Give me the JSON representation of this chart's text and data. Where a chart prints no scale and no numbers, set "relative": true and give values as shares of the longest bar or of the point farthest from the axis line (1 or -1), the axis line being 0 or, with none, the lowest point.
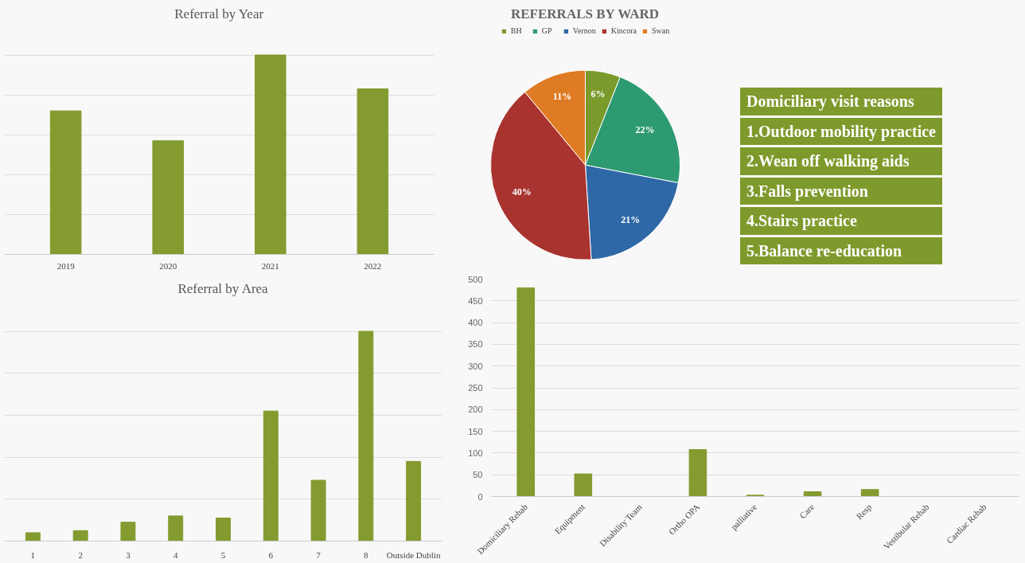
{
  "chart_data": [
    {
      "type": "bar",
      "title": "Referral by Year",
      "categories": [
        "2019",
        "2020",
        "2021",
        "2022"
      ],
      "values": [
        0.72,
        0.57,
        1,
        0.83
      ],
      "relative": true,
      "color": "#849b2f",
      "grid": "y",
      "tick_labels": "x"
    },
    {
      "type": "pie",
      "title": "REFERRALS BY WARD",
      "categories": [
        "BH",
        "GP",
        "Vernon",
        "Kincora",
        "Swan"
      ],
      "values": [
        6,
        22,
        21,
        40,
        11
      ],
      "value_labels": [
        "6%",
        "22%",
        "21%",
        "40%",
        "11%"
      ],
      "colors": [
        "#7b9a2c",
        "#2e9a72",
        "#2f68a6",
        "#a8332f",
        "#e07b25"
      ],
      "legend": "top"
    },
    {
      "type": "other",
      "title": "Domiciliary visit reasons",
      "annotations": [
        "1.Outdoor mobility practice",
        "2.Wean off walking aids",
        "3.Falls prevention",
        "4.Stairs practice",
        "5.Balance re-education"
      ]
    },
    {
      "type": "bar",
      "title": "Referral by Area",
      "categories": [
        "1",
        "2",
        "3",
        "4",
        "5",
        "6",
        "7",
        "8",
        "Outside Dublin"
      ],
      "values": [
        0.04,
        0.05,
        0.09,
        0.12,
        0.11,
        0.62,
        0.29,
        1,
        0.38
      ],
      "relative": true,
      "color": "#849b2f",
      "grid": "y",
      "tick_labels": "x"
    },
    {
      "type": "bar",
      "categories": [
        "Domiciliary Rehab",
        "Equipment",
        "Disability Team",
        "Ortho OPA",
        "palliative",
        "Care",
        "Resp",
        "Vestibular Rehab",
        "Cardiac Rehab"
      ],
      "values": [
        480,
        52,
        0,
        108,
        3,
        11,
        16,
        0,
        0
      ],
      "color": "#849b2f",
      "ylim": [
        0,
        500
      ],
      "yticks": [
        0,
        50,
        100,
        150,
        200,
        250,
        300,
        350,
        400,
        450,
        500
      ],
      "grid": "y"
    }
  ]
}
